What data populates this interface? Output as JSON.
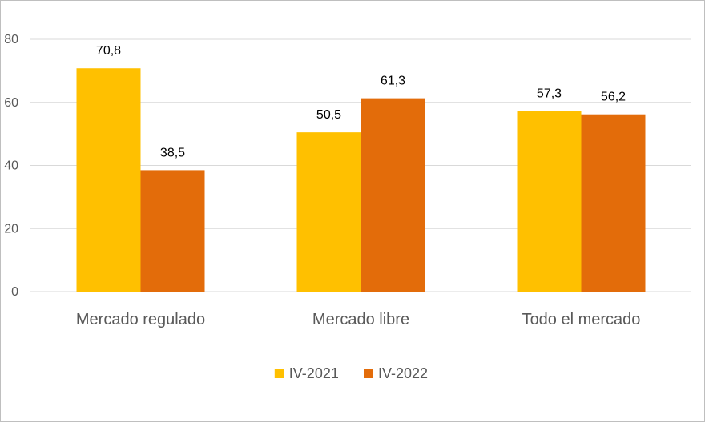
{
  "chart_data": {
    "type": "bar",
    "title": "",
    "xlabel": "",
    "ylabel": "",
    "categories": [
      "Mercado regulado",
      "Mercado libre",
      "Todo el mercado"
    ],
    "series": [
      {
        "name": "IV-2021",
        "values": [
          70.8,
          50.5,
          57.3
        ],
        "labels": [
          "70,8",
          "50,5",
          "57,3"
        ],
        "color": "#FFC000"
      },
      {
        "name": "IV-2022",
        "values": [
          38.5,
          61.3,
          56.2
        ],
        "labels": [
          "38,5",
          "61,3",
          "56,2"
        ],
        "color": "#E36C0A"
      }
    ],
    "ylim": [
      0,
      80
    ],
    "yticks": [
      0,
      20,
      40,
      60,
      80
    ],
    "grid": true,
    "legend_position": "bottom-center"
  }
}
